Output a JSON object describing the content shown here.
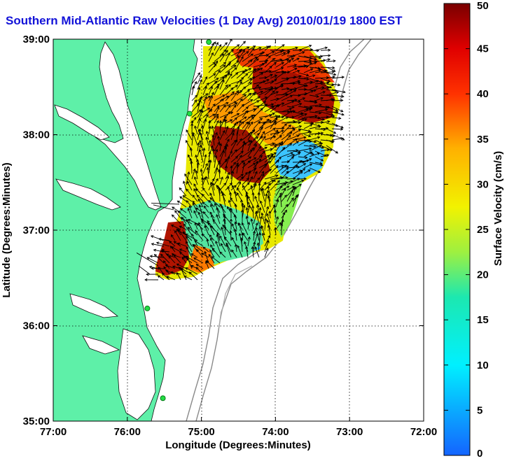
{
  "title": "Southern Mid-Atlantic Raw Velocities (1 Day Avg) 2010/01/19 1800 EST",
  "map": {
    "xlabel": "Longitude (Degrees:Minutes)",
    "ylabel": "Latitude (Degrees:Minutes)",
    "xlim": [
      -77,
      -72
    ],
    "ylim": [
      35,
      39
    ],
    "x_ticks": [
      {
        "value": -77,
        "label": "77:00"
      },
      {
        "value": -76,
        "label": "76:00"
      },
      {
        "value": -75,
        "label": "75:00"
      },
      {
        "value": -74,
        "label": "74:00"
      },
      {
        "value": -73,
        "label": "73:00"
      },
      {
        "value": -72,
        "label": "72:00"
      }
    ],
    "y_ticks": [
      {
        "value": 39,
        "label": "39:00"
      },
      {
        "value": 38,
        "label": "38:00"
      },
      {
        "value": 37,
        "label": "37:00"
      },
      {
        "value": 36,
        "label": "36:00"
      },
      {
        "value": 35,
        "label": "35:00"
      }
    ],
    "grid": "dotted",
    "land_color": "#5ef0a8",
    "stations": [
      {
        "lon": -74.9,
        "lat": 38.97
      },
      {
        "lon": -75.16,
        "lat": 38.22
      },
      {
        "lon": -75.73,
        "lat": 36.18
      },
      {
        "lon": -75.52,
        "lat": 35.24
      }
    ]
  },
  "colorbar": {
    "label": "Surface Velocity (cm/s)",
    "min": 0,
    "max": 50,
    "ticks": [
      {
        "value": 50,
        "label": "50"
      },
      {
        "value": 45,
        "label": "45"
      },
      {
        "value": 40,
        "label": "40"
      },
      {
        "value": 35,
        "label": "35"
      },
      {
        "value": 30,
        "label": "30"
      },
      {
        "value": 25,
        "label": "25"
      },
      {
        "value": 20,
        "label": "20"
      },
      {
        "value": 15,
        "label": "15"
      },
      {
        "value": 10,
        "label": "10"
      },
      {
        "value": 5,
        "label": "5"
      },
      {
        "value": 0,
        "label": "0"
      }
    ]
  }
}
